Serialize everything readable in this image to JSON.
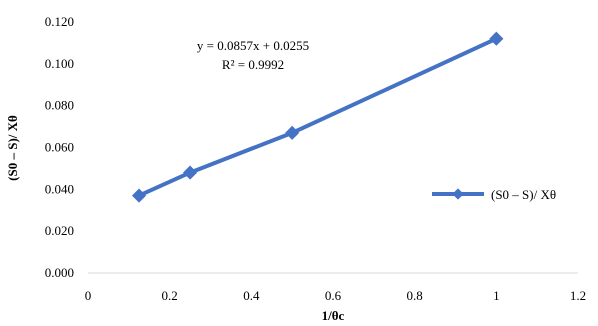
{
  "chart_data": {
    "type": "line",
    "xlabel": "1/θc",
    "ylabel": "(S0 – S)/ Xθ",
    "xlim": [
      0,
      1.2
    ],
    "ylim": [
      0,
      0.12
    ],
    "x_ticks": [
      "0",
      "0.2",
      "0.4",
      "0.6",
      "0.8",
      "1",
      "1.2"
    ],
    "y_ticks": [
      "0.000",
      "0.020",
      "0.040",
      "0.060",
      "0.080",
      "0.100",
      "0.120"
    ],
    "grid": false,
    "legend_position": "right",
    "series": [
      {
        "name": "(S0 – S)/ Xθ",
        "color": "#4472C4",
        "marker": "diamond",
        "x": [
          0.125,
          0.25,
          0.5,
          1.0
        ],
        "y": [
          0.037,
          0.048,
          0.067,
          0.112
        ]
      }
    ],
    "annotations": {
      "equation": "y = 0.0857x + 0.0255",
      "r_squared": "R² = 0.9992"
    }
  }
}
